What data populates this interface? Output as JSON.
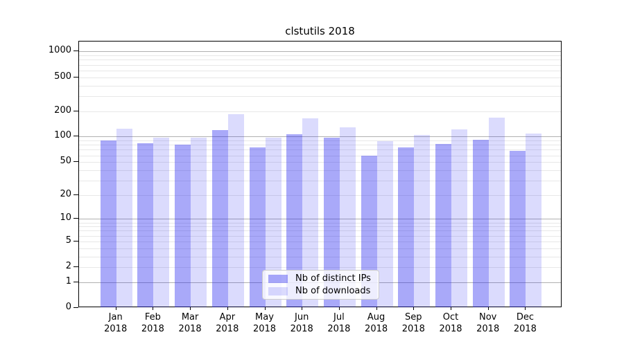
{
  "figure": {
    "title": "clstutils 2018"
  },
  "chart_data": {
    "type": "bar",
    "title": "clstutils 2018",
    "categories": [
      "Jan",
      "Feb",
      "Mar",
      "Apr",
      "May",
      "Jun",
      "Jul",
      "Aug",
      "Sep",
      "Oct",
      "Nov",
      "Dec"
    ],
    "category_year": "2018",
    "series": [
      {
        "name": "Nb of distinct IPs",
        "color": "rgba(30,30,240,0.38)",
        "values": [
          90,
          83,
          80,
          120,
          75,
          106,
          98,
          60,
          74,
          82,
          92,
          68
        ]
      },
      {
        "name": "Nb of downloads",
        "color": "rgba(30,30,240,0.16)",
        "values": [
          124,
          98,
          98,
          184,
          97,
          163,
          128,
          88,
          105,
          122,
          166,
          109
        ]
      }
    ],
    "xlabel": "",
    "ylabel": "",
    "y_scale": "log1p",
    "y_ticks": [
      0,
      1,
      2,
      5,
      10,
      20,
      50,
      100,
      200,
      500,
      1000
    ],
    "ylim": [
      0,
      1300
    ],
    "grid": {
      "enabled": true,
      "major_color": "#b0b0b0",
      "minor_color": "#e7e7e7"
    },
    "legend": {
      "position": "lower center",
      "labels": [
        "Nb of distinct IPs",
        "Nb of downloads"
      ]
    }
  }
}
